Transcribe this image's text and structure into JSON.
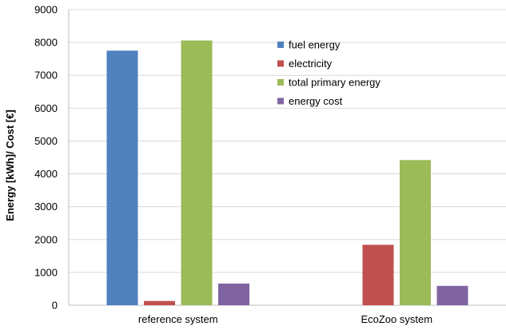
{
  "chart_data": {
    "type": "bar",
    "categories": [
      "reference system",
      "EcoZoo system"
    ],
    "series": [
      {
        "name": "fuel energy",
        "values": [
          7750,
          0
        ],
        "color": "#4f81bd"
      },
      {
        "name": "electricity",
        "values": [
          130,
          1840
        ],
        "color": "#c0504d"
      },
      {
        "name": "total primary energy",
        "values": [
          8060,
          4420
        ],
        "color": "#9bbb59"
      },
      {
        "name": "energy cost",
        "values": [
          660,
          590
        ],
        "color": "#8064a2"
      }
    ],
    "title": "",
    "xlabel": "",
    "ylabel": "Energy [kWh]/ Cost [€]",
    "ylim": [
      0,
      9000
    ],
    "yticks": [
      "0",
      "1000",
      "2000",
      "3000",
      "4000",
      "5000",
      "6000",
      "7000",
      "8000",
      "9000"
    ],
    "grid": true,
    "legend_position": "top-right"
  }
}
